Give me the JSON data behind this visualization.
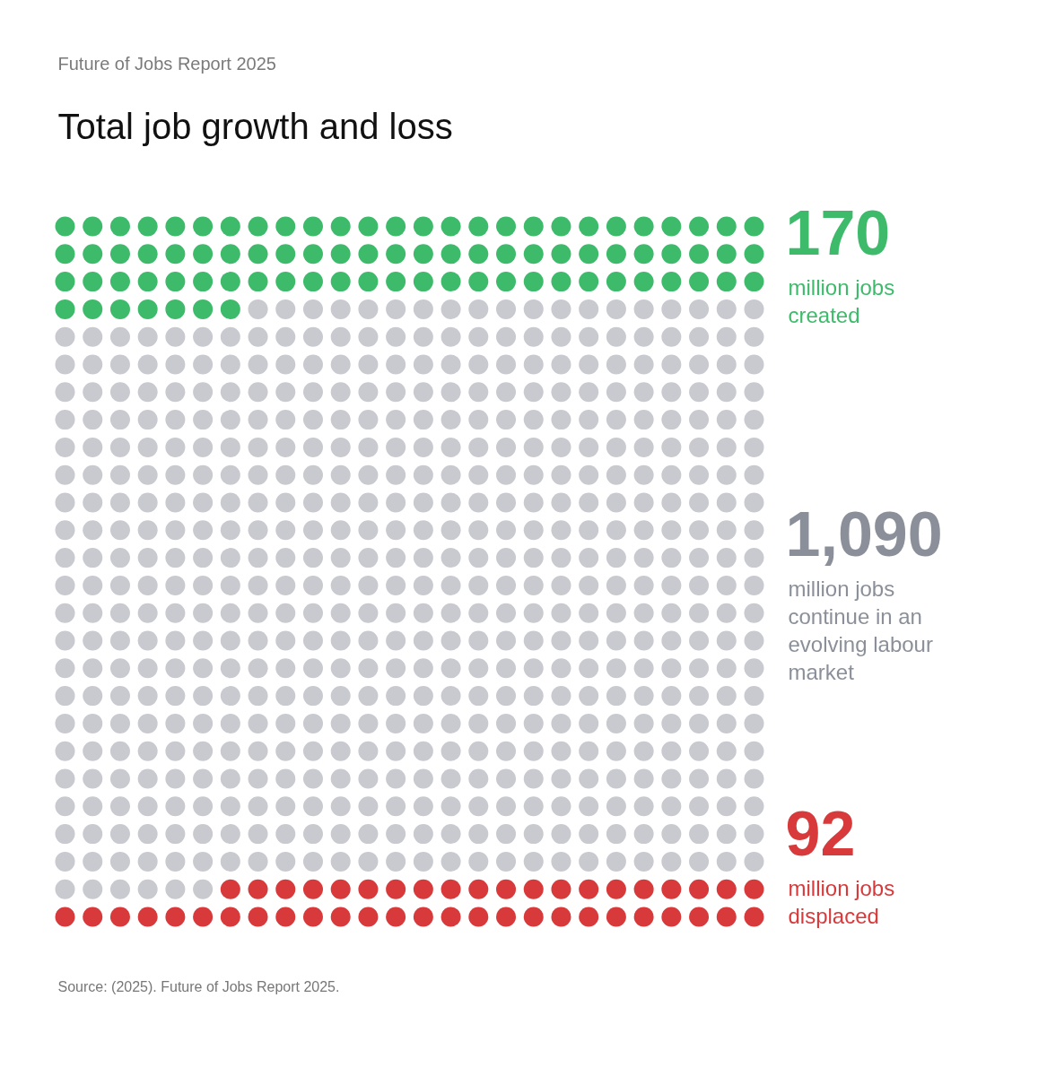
{
  "chart_data": {
    "type": "other",
    "subtitle": "Future of Jobs Report 2025",
    "title": "Total job growth and loss",
    "categories": [
      "million jobs created",
      "million jobs continue in an evolving labour market",
      "million jobs displaced"
    ],
    "values": [
      170,
      1090,
      92
    ],
    "value_labels": [
      "170",
      "1,090",
      "92"
    ],
    "colors": [
      "#3dbb6b",
      "#c8cad0",
      "#d8393a"
    ],
    "annotations": [
      "Source: (2025). Future of Jobs Report 2025."
    ]
  }
}
